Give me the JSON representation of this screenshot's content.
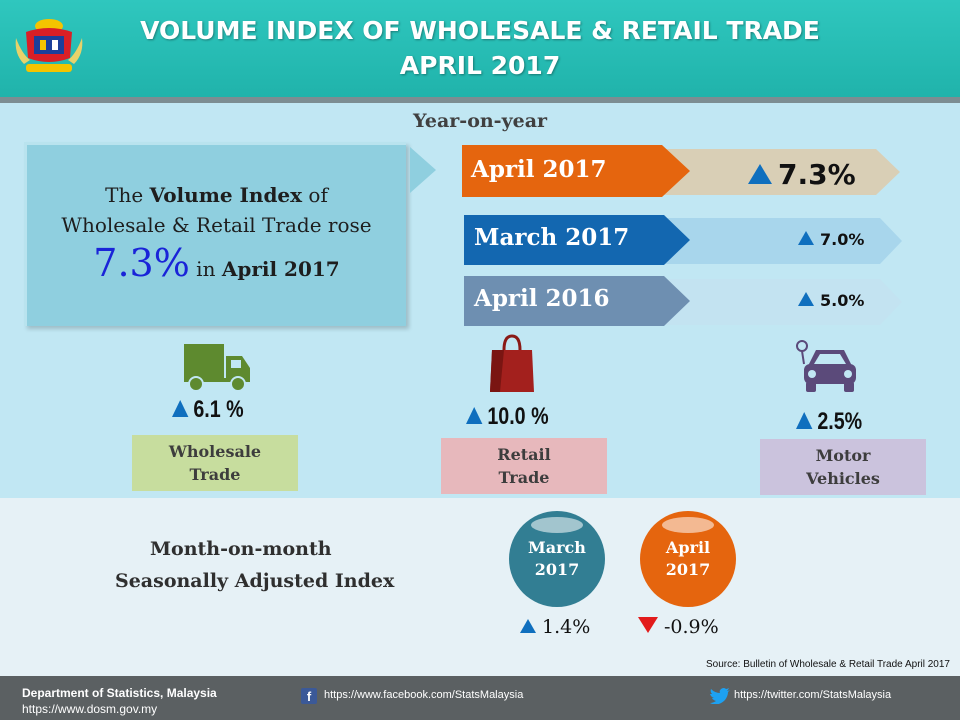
{
  "header": {
    "title_line1": "VOLUME INDEX OF WHOLESALE & RETAIL TRADE",
    "title_line2": "APRIL 2017",
    "logo_icon": "malaysia-coat-of-arms-icon"
  },
  "year_on_year": {
    "heading": "Year-on-year",
    "summary": {
      "pre": "The ",
      "bold": "Volume Index",
      "post": " of",
      "line2": "Wholesale & Retail Trade rose",
      "big_value": "7.3%",
      "in_text": " in ",
      "period": "April 2017"
    },
    "bars": [
      {
        "label": "April 2017",
        "value": "7.3%",
        "color": "#e5650e"
      },
      {
        "label": "March 2017",
        "value": "7.0%",
        "color": "#1367b0"
      },
      {
        "label": "April 2016",
        "value": "5.0%",
        "color": "#6e8fb1"
      }
    ],
    "categories": [
      {
        "pct": "6.1 %",
        "line1": "Wholesale",
        "line2": "Trade",
        "icon": "truck-icon",
        "box_color": "#c7dd9e"
      },
      {
        "pct": "10.0 %",
        "line1": "Retail",
        "line2": "Trade",
        "icon": "shopping-bag-icon",
        "box_color": "#e7b8bc"
      },
      {
        "pct": "2.5%",
        "line1": "Motor",
        "line2": "Vehicles",
        "icon": "car-icon",
        "box_color": "#cbc3dd"
      }
    ]
  },
  "month_on_month": {
    "heading_line1": "Month-on-month",
    "heading_line2": "Seasonally Adjusted Index",
    "items": [
      {
        "line1": "March",
        "line2": "2017",
        "value": "1.4%",
        "direction": "up",
        "color": "#327e93"
      },
      {
        "line1": "April",
        "line2": "2017",
        "value": "-0.9%",
        "direction": "down",
        "color": "#e5650e"
      }
    ]
  },
  "source": "Source: Bulletin of Wholesale & Retail Trade April 2017",
  "footer": {
    "department": "Department of Statistics, Malaysia",
    "website": "https://www.dosm.gov.my",
    "facebook": "https://www.facebook.com/StatsMalaysia",
    "twitter": "https://twitter.com/StatsMalaysia"
  }
}
